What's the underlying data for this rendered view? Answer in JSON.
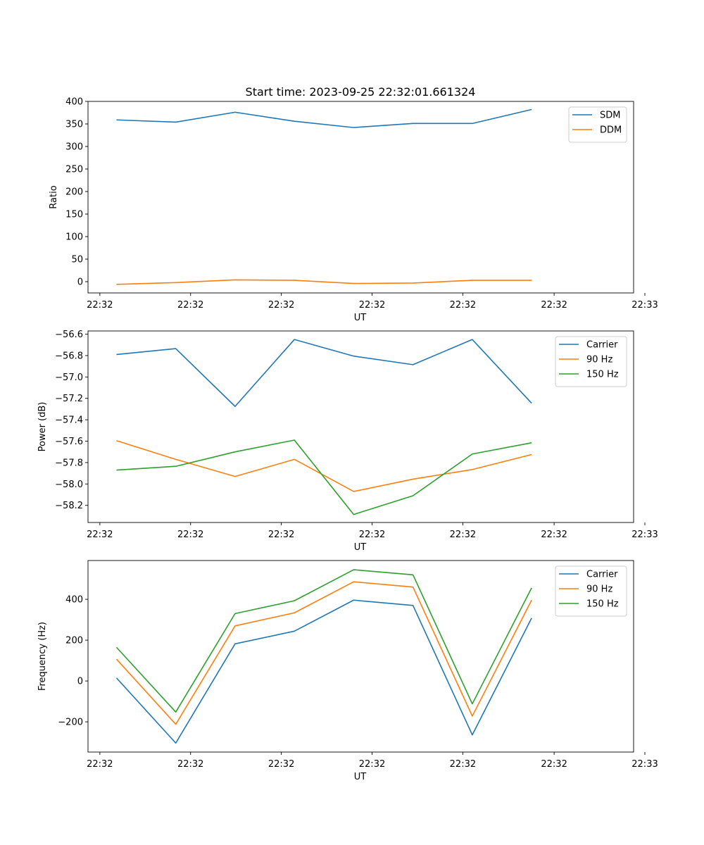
{
  "figure_title": "Start time: 2023-09-25 22:32:01.661324",
  "colors": {
    "blue": "#1f77b4",
    "orange": "#ff7f0e",
    "green": "#2ca02c"
  },
  "chart_data": [
    {
      "type": "line",
      "title": "Start time: 2023-09-25 22:32:01.661324",
      "xlabel": "UT",
      "ylabel": "Ratio",
      "x": [
        1,
        2,
        3,
        4,
        5,
        6,
        7,
        8
      ],
      "xlim": [
        0.52,
        9.72
      ],
      "xticks": [
        0.72,
        2.25,
        3.78,
        5.31,
        6.84,
        8.38,
        9.91
      ],
      "xtick_labels": [
        "22:32",
        "22:32",
        "22:32",
        "22:32",
        "22:32",
        "22:32",
        "22:33"
      ],
      "ylim": [
        -25,
        400
      ],
      "yticks": [
        0,
        50,
        100,
        150,
        200,
        250,
        300,
        350,
        400
      ],
      "ytick_labels": [
        "0",
        "50",
        "100",
        "150",
        "200",
        "250",
        "300",
        "350",
        "400"
      ],
      "legend": "top-right",
      "series": [
        {
          "name": "SDM",
          "color": "#1f77b4",
          "values": [
            359,
            354,
            376,
            356,
            342,
            351,
            351,
            382
          ]
        },
        {
          "name": "DDM",
          "color": "#ff7f0e",
          "values": [
            -6,
            -2,
            4,
            3,
            -4,
            -3,
            3,
            3
          ]
        }
      ]
    },
    {
      "type": "line",
      "title": "",
      "xlabel": "UT",
      "ylabel": "Power (dB)",
      "x": [
        1,
        2,
        3,
        4,
        5,
        6,
        7,
        8
      ],
      "xlim": [
        0.52,
        9.72
      ],
      "xticks": [
        0.72,
        2.25,
        3.78,
        5.31,
        6.84,
        8.38,
        9.91
      ],
      "xtick_labels": [
        "22:32",
        "22:32",
        "22:32",
        "22:32",
        "22:32",
        "22:32",
        "22:33"
      ],
      "ylim": [
        -58.36,
        -56.57
      ],
      "yticks": [
        -58.2,
        -58.0,
        -57.8,
        -57.6,
        -57.4,
        -57.2,
        -57.0,
        -56.8,
        -56.6
      ],
      "ytick_labels": [
        "−58.2",
        "−58.0",
        "−57.8",
        "−57.6",
        "−57.4",
        "−57.2",
        "−57.0",
        "−56.8",
        "−56.6"
      ],
      "legend": "top-right",
      "series": [
        {
          "name": "Carrier",
          "color": "#1f77b4",
          "values": [
            -56.79,
            -56.735,
            -57.275,
            -56.65,
            -56.805,
            -56.885,
            -56.65,
            -57.245
          ]
        },
        {
          "name": "90 Hz",
          "color": "#ff7f0e",
          "values": [
            -57.595,
            -57.77,
            -57.93,
            -57.77,
            -58.07,
            -57.955,
            -57.865,
            -57.725
          ]
        },
        {
          "name": "150 Hz",
          "color": "#2ca02c",
          "values": [
            -57.87,
            -57.835,
            -57.7,
            -57.59,
            -58.285,
            -58.11,
            -57.72,
            -57.615
          ]
        }
      ]
    },
    {
      "type": "line",
      "title": "",
      "xlabel": "UT",
      "ylabel": "Frequency (Hz)",
      "x": [
        1,
        2,
        3,
        4,
        5,
        6,
        7,
        8
      ],
      "xlim": [
        0.52,
        9.72
      ],
      "xticks": [
        0.72,
        2.25,
        3.78,
        5.31,
        6.84,
        8.38,
        9.91
      ],
      "xtick_labels": [
        "22:32",
        "22:32",
        "22:32",
        "22:32",
        "22:32",
        "22:32",
        "22:33"
      ],
      "ylim": [
        -348,
        590
      ],
      "yticks": [
        -200,
        0,
        200,
        400
      ],
      "ytick_labels": [
        "−200",
        "0",
        "200",
        "400"
      ],
      "legend": "top-right",
      "series": [
        {
          "name": "Carrier",
          "color": "#1f77b4",
          "values": [
            15,
            -304,
            182,
            244,
            396,
            370,
            -264,
            308
          ]
        },
        {
          "name": "90 Hz",
          "color": "#ff7f0e",
          "values": [
            107,
            -212,
            270,
            334,
            486,
            460,
            -172,
            396
          ]
        },
        {
          "name": "150 Hz",
          "color": "#2ca02c",
          "values": [
            165,
            -152,
            330,
            393,
            545,
            520,
            -112,
            456
          ]
        }
      ]
    }
  ]
}
